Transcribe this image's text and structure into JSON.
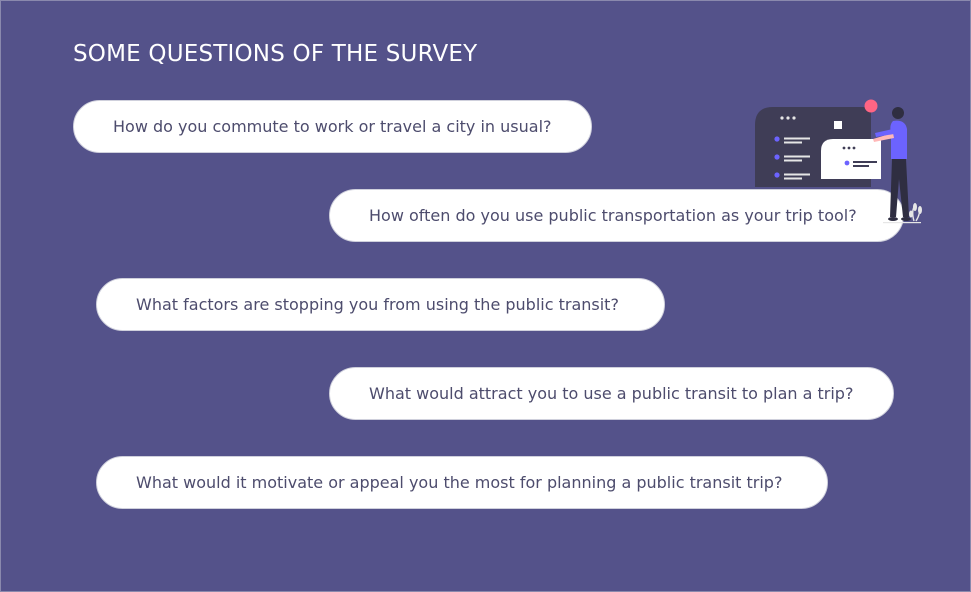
{
  "title": "SOME QUESTIONS OF THE SURVEY",
  "questions": [
    {
      "text": "How do you commute to work or travel a city in usual?"
    },
    {
      "text": "How often do you use public transportation as your trip tool?"
    },
    {
      "text": "What factors are stopping you from using the public transit?"
    },
    {
      "text": "What would attract you to use a public transit to plan a trip?"
    },
    {
      "text": "What would it motivate or appeal you the most for planning a public transit trip?"
    }
  ],
  "illustration": {
    "icon": "person-with-dashboard-illustration"
  },
  "colors": {
    "background": "#54528a",
    "pill": "#ffffff",
    "pill_text": "#4d4c6d",
    "accent": "#6c63ff",
    "pink": "#ff6584"
  }
}
